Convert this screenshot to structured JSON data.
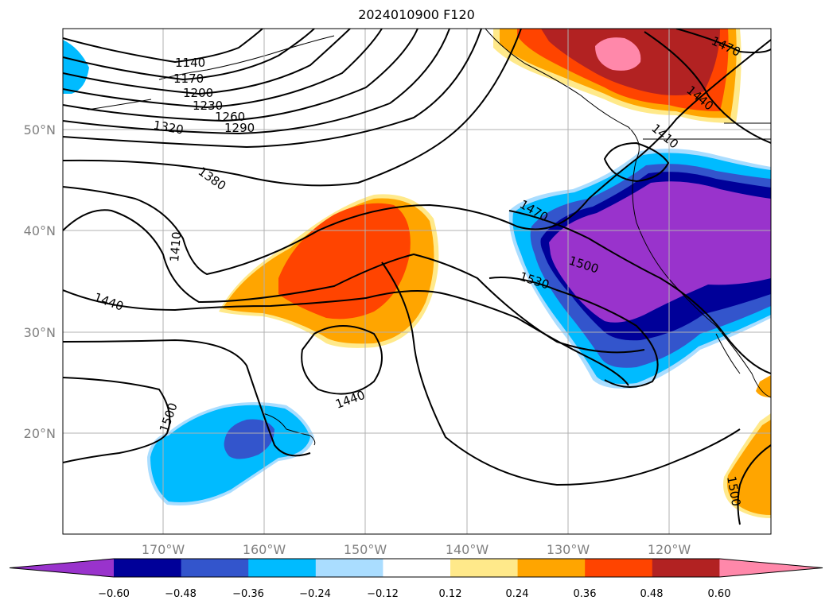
{
  "title": "2024010900 F120",
  "map": {
    "lat_labels": [
      "50°N",
      "40°N",
      "30°N",
      "20°N"
    ],
    "lon_labels": [
      "170°W",
      "160°W",
      "150°W",
      "140°W",
      "130°W",
      "120°W"
    ],
    "contour_labels": [
      "1140",
      "1170",
      "1200",
      "1230",
      "1260",
      "1290",
      "1320",
      "1380",
      "1410",
      "1440",
      "1500",
      "1440",
      "1470",
      "1500",
      "1530",
      "1410",
      "1440",
      "1470",
      "1500"
    ]
  },
  "colorbar": {
    "ticks": [
      "−0.60",
      "−0.48",
      "−0.36",
      "−0.24",
      "−0.12",
      "0.12",
      "0.24",
      "0.36",
      "0.48",
      "0.60"
    ],
    "colors": [
      "#9933cc",
      "#000099",
      "#3355cc",
      "#00bbff",
      "#aaddff",
      "#ffffff",
      "#ffe98a",
      "#ffa500",
      "#ff4400",
      "#b22222",
      "#ff88aa"
    ]
  }
}
